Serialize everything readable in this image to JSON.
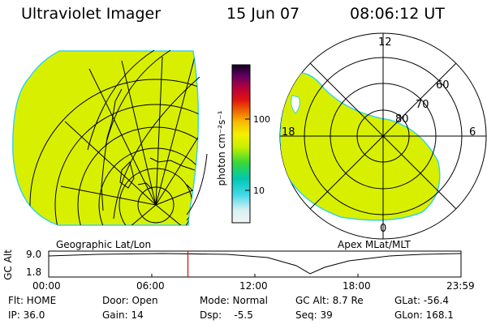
{
  "header": {
    "instrument": "Ultraviolet Imager",
    "date": "15 Jun 07",
    "time": "08:06:12 UT"
  },
  "colorbar": {
    "unit_label": "photon cm⁻²s⁻¹",
    "ticks": [
      "100",
      "10"
    ]
  },
  "geo_panel": {
    "caption": "Geographic Lat/Lon"
  },
  "polar_panel": {
    "caption": "Apex MLat/MLT",
    "mlt_labels": {
      "top": "12",
      "left": "18",
      "right": "6",
      "bottom": "0"
    },
    "lat_labels": [
      "60",
      "70",
      "80"
    ]
  },
  "altitude_plot": {
    "ylabel": "GC Alt",
    "ymax_label": "9.0",
    "ymin_label": "1.8",
    "time_ticks": [
      "00:00",
      "06:00",
      "12:00",
      "18:00",
      "23:59"
    ],
    "current_time_fraction": 0.3376
  },
  "info_grid": {
    "row1": {
      "flt": "Flt: HOME",
      "door": "Door: Open",
      "mode": "Mode: Normal",
      "gcalt": "GC Alt: 8.7 Re",
      "glat": "GLat: -56.4"
    },
    "row2": {
      "ip": "IP: 36.0",
      "gain": "Gain: 14",
      "dsp": "Dsp:    -5.5",
      "seq": "Seq: 39",
      "glon": "GLon: 168.1"
    }
  },
  "colors": {
    "fill": "#d8f000",
    "edge": "#37d3e8",
    "marker": "#e00000"
  }
}
